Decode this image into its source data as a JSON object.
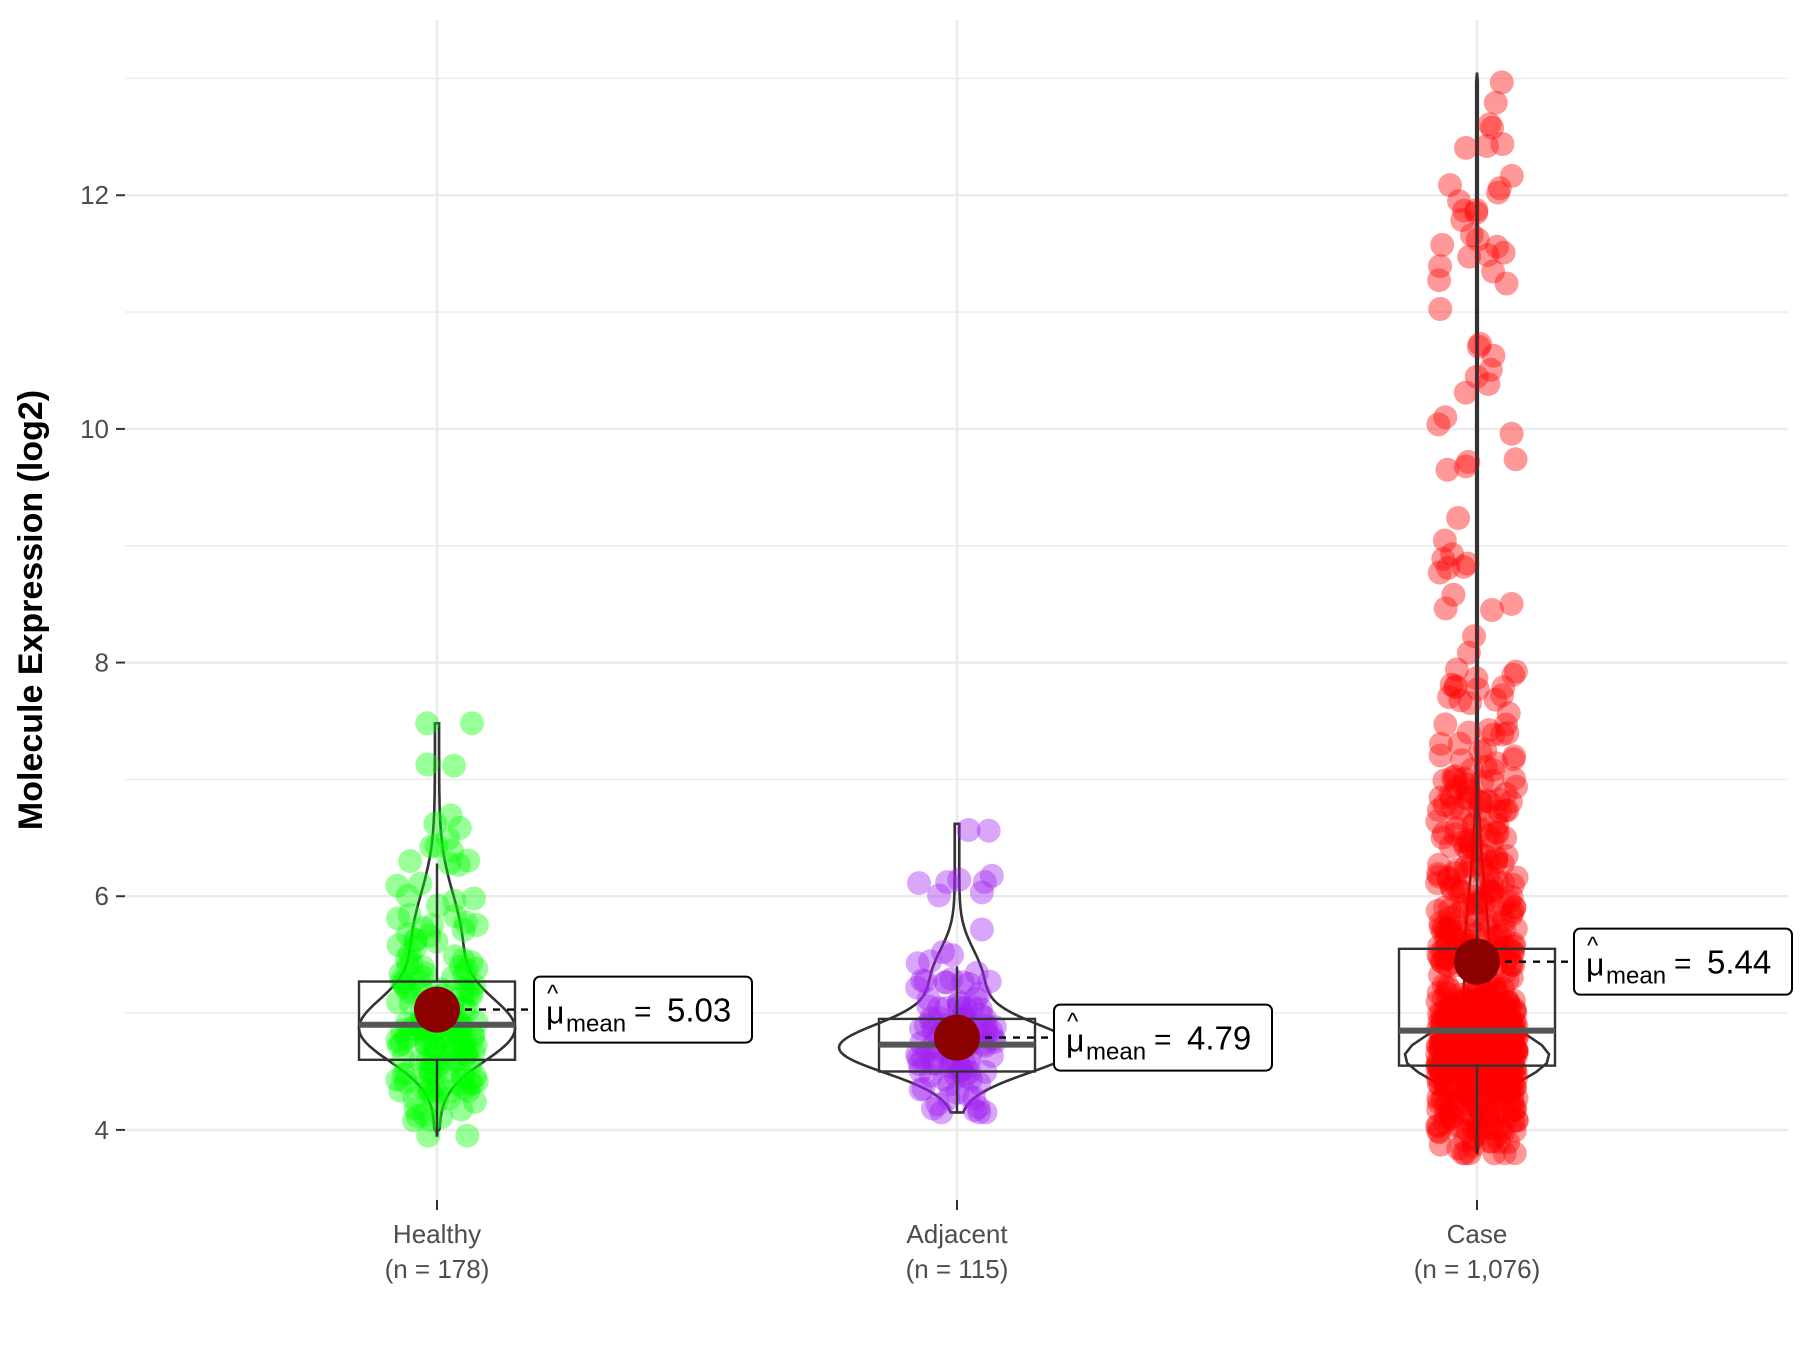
{
  "chart_data": {
    "type": "violin",
    "ylabel": "Molecule Expression (log2)",
    "ylim": [
      3.4,
      13.5
    ],
    "yticks": [
      4,
      6,
      8,
      10,
      12
    ],
    "grid": true,
    "groups": [
      {
        "name": "Healthy",
        "n_label": "(n = 178)",
        "color": "#00ff00",
        "min": 3.95,
        "q1": 4.6,
        "median": 4.9,
        "q3": 5.27,
        "max": 7.48,
        "whisker_low": 3.95,
        "whisker_high": 6.28,
        "mean": 5.03,
        "mean_label": "5.03",
        "n": 178
      },
      {
        "name": "Adjacent",
        "n_label": "(n = 115)",
        "color": "#a020f0",
        "min": 4.15,
        "q1": 4.5,
        "median": 4.73,
        "q3": 4.95,
        "max": 6.62,
        "whisker_low": 4.15,
        "whisker_high": 5.4,
        "mean": 4.79,
        "mean_label": "4.79",
        "n": 115
      },
      {
        "name": "Case",
        "n_label": "(n = 1,076)",
        "color": "#ff0000",
        "min": 3.8,
        "q1": 4.55,
        "median": 4.85,
        "q3": 5.55,
        "max": 13.05,
        "whisker_low": 3.8,
        "whisker_high": 13.05,
        "mean": 5.44,
        "mean_label": "5.44",
        "n": 1076
      }
    ],
    "mean_symbol": "μ",
    "mean_subscript": "mean",
    "mean_point_color": "#8b0000"
  }
}
